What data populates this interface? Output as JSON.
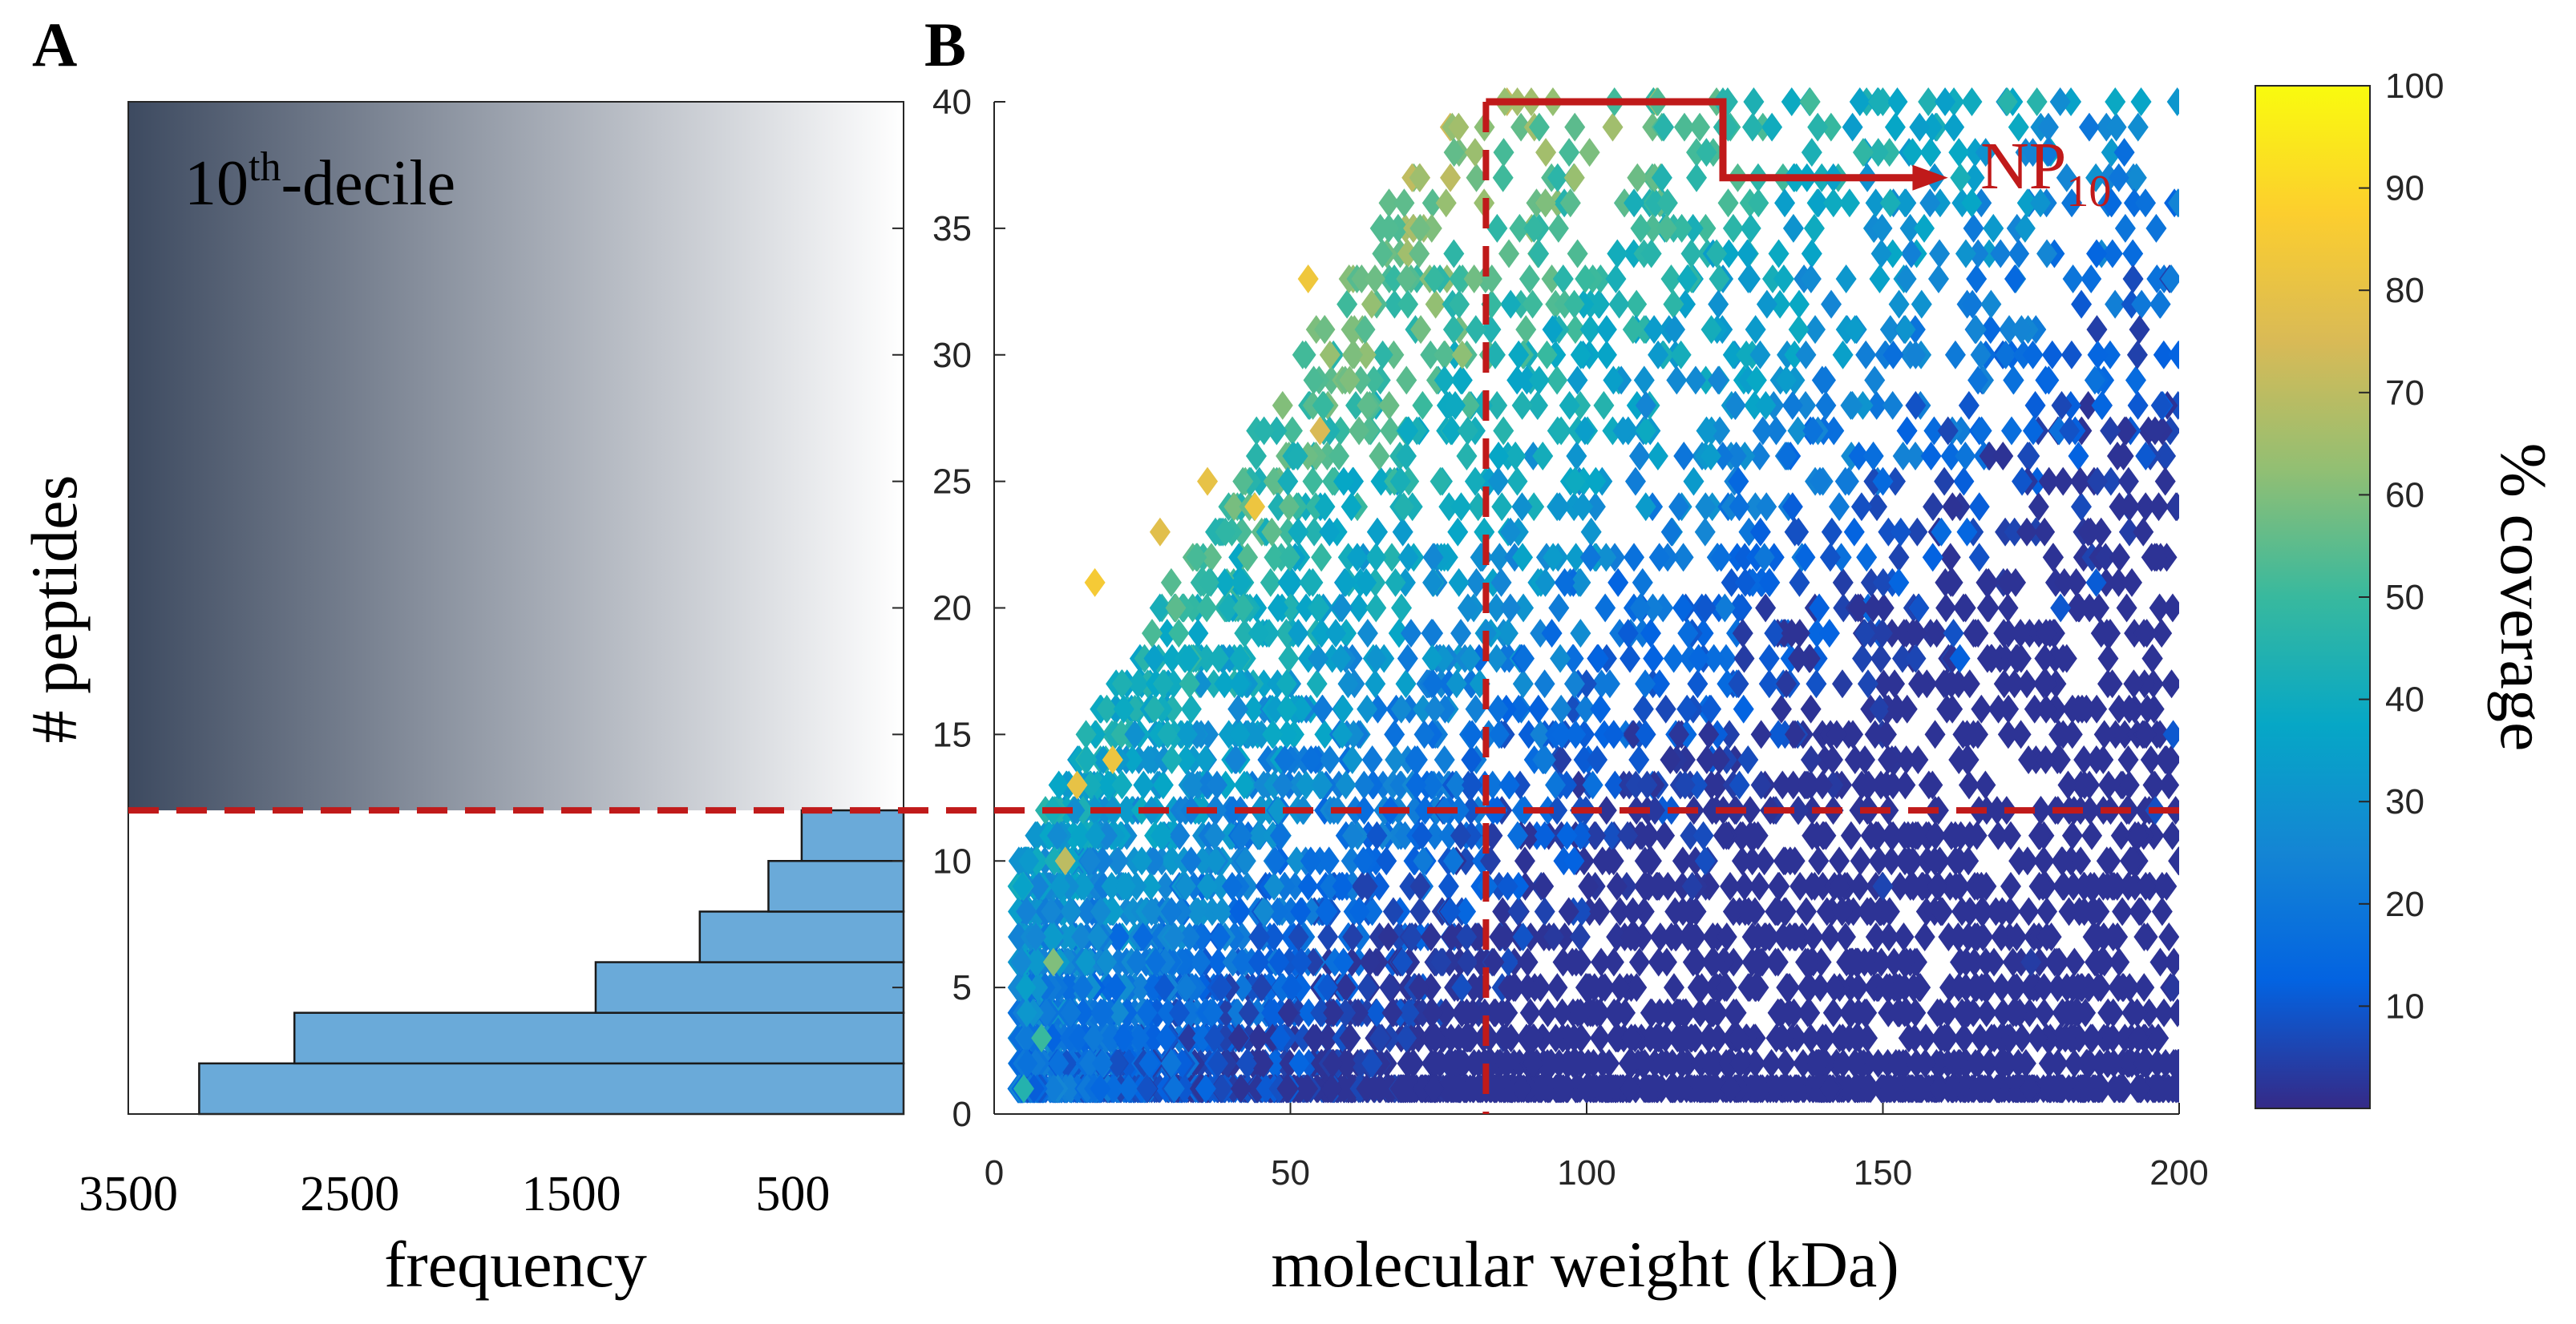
{
  "figure": {
    "panel_a_label": "A",
    "panel_b_label": "B"
  },
  "chart_data": [
    {
      "type": "bar",
      "orientation": "horizontal",
      "panel": "A",
      "title": "",
      "xlabel": "frequency",
      "ylabel": "# peptides",
      "x_reversed": true,
      "xlim": [
        0,
        3500
      ],
      "ylim": [
        0,
        40
      ],
      "xticks": [
        "3500",
        "2500",
        "1500",
        "500"
      ],
      "xtick_values": [
        3500,
        2500,
        1500,
        500
      ],
      "bins": [
        {
          "from": 0,
          "to": 2,
          "value": 3180
        },
        {
          "from": 2,
          "to": 4,
          "value": 2750
        },
        {
          "from": 4,
          "to": 6,
          "value": 1390
        },
        {
          "from": 6,
          "to": 8,
          "value": 920
        },
        {
          "from": 8,
          "to": 10,
          "value": 610
        },
        {
          "from": 10,
          "to": 12,
          "value": 460
        }
      ],
      "bar_color": "#6AAAD9",
      "shaded_region": {
        "label_main": "10",
        "label_sup": "th",
        "label_rest": "-decile",
        "from_y": 12,
        "to_y": 40,
        "color_dark": "#3D4A60",
        "color_light": "#FFFFFF"
      },
      "threshold_y": 12,
      "threshold_color": "#C01A1A"
    },
    {
      "type": "scatter",
      "panel": "B",
      "title": "",
      "xlabel": "molecular weight (kDa)",
      "ylabel": "",
      "xlim": [
        0,
        200
      ],
      "ylim": [
        0,
        40
      ],
      "xticks": [
        "0",
        "50",
        "100",
        "150",
        "200"
      ],
      "xtick_values": [
        0,
        50,
        100,
        150,
        200
      ],
      "yticks": [
        "0",
        "5",
        "10",
        "15",
        "20",
        "25",
        "30",
        "35",
        "40"
      ],
      "ytick_values": [
        0,
        5,
        10,
        15,
        20,
        25,
        30,
        35,
        40
      ],
      "marker": "diamond",
      "threshold_x": 83,
      "threshold_y": 12,
      "threshold_color": "#C01A1A",
      "annotation": {
        "text": "NP",
        "sub": "10",
        "color": "#C01A1A"
      },
      "colorbar": {
        "label": "% coverage",
        "range": [
          0,
          100
        ],
        "ticks": [
          "10",
          "20",
          "30",
          "40",
          "50",
          "60",
          "70",
          "80",
          "90",
          "100"
        ],
        "tick_values": [
          10,
          20,
          30,
          40,
          50,
          60,
          70,
          80,
          90,
          100
        ],
        "colormap": "parula",
        "stops": [
          "#352A87",
          "#0363E1",
          "#1485D4",
          "#06A7C6",
          "#38B99E",
          "#92BF73",
          "#D9BA56",
          "#FCCE2E",
          "#F9FB0E"
        ]
      },
      "points_sample": [
        [
          5,
          1,
          45
        ],
        [
          8,
          3,
          50
        ],
        [
          10,
          6,
          60
        ],
        [
          12,
          10,
          70
        ],
        [
          14,
          13,
          80
        ],
        [
          17,
          21,
          85
        ],
        [
          20,
          14,
          82
        ],
        [
          28,
          23,
          78
        ],
        [
          36,
          25,
          80
        ],
        [
          44,
          24,
          82
        ],
        [
          53,
          33,
          83
        ],
        [
          55,
          27,
          75
        ],
        [
          60,
          29,
          60
        ],
        [
          65,
          26,
          55
        ],
        [
          72,
          31,
          58
        ],
        [
          77,
          37,
          70
        ],
        [
          79,
          30,
          62
        ],
        [
          84,
          33,
          55
        ],
        [
          86,
          38,
          52
        ],
        [
          92,
          39,
          52
        ],
        [
          98,
          39,
          55
        ],
        [
          108,
          36,
          42
        ],
        [
          113,
          39,
          46
        ],
        [
          117,
          33,
          40
        ],
        [
          123,
          40,
          46
        ],
        [
          128,
          39,
          45
        ],
        [
          129,
          36,
          48
        ],
        [
          139,
          39,
          46
        ],
        [
          155,
          38,
          38
        ],
        [
          158,
          38,
          38
        ],
        [
          162,
          39,
          35
        ],
        [
          164,
          34,
          30
        ],
        [
          171,
          40,
          46
        ],
        [
          176,
          40,
          46
        ],
        [
          92,
          29,
          40
        ],
        [
          110,
          28,
          25
        ],
        [
          130,
          22,
          20
        ],
        [
          150,
          25,
          15
        ],
        [
          163,
          18,
          12
        ],
        [
          180,
          20,
          10
        ],
        [
          186,
          21,
          11
        ],
        [
          199,
          15,
          10
        ],
        [
          196,
          12,
          8
        ],
        [
          120,
          10,
          8
        ],
        [
          150,
          9,
          6
        ],
        [
          175,
          6,
          4
        ],
        [
          199,
          5,
          3
        ],
        [
          190,
          1,
          2
        ]
      ]
    }
  ]
}
